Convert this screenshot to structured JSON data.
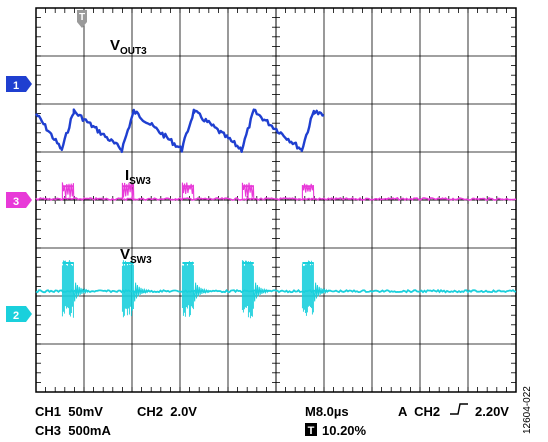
{
  "chart_data": {
    "type": "line",
    "title": "",
    "xlabel": "",
    "ylabel": "",
    "grid": true,
    "x_divisions": 10,
    "y_divisions": 8,
    "x_range_us": [
      0,
      80
    ],
    "series": [
      {
        "name": "V",
        "name_sub": "OUT3",
        "channel": "1",
        "color": "#1f3fd0",
        "points_us_div": [
          [
            0,
            5.8
          ],
          [
            4.3,
            5.05
          ],
          [
            6.3,
            5.85
          ],
          [
            14.3,
            5.05
          ],
          [
            16.3,
            5.85
          ],
          [
            24.3,
            5.05
          ],
          [
            26.3,
            5.85
          ],
          [
            34.3,
            5.05
          ],
          [
            36.3,
            5.85
          ],
          [
            44.3,
            5.05
          ],
          [
            46.3,
            5.85
          ],
          [
            48,
            5.75
          ]
        ]
      },
      {
        "name": "I",
        "name_sub": "SW3",
        "channel": "3",
        "color": "#e83ad8",
        "baseline_div": 4.02,
        "pulse_height_div": 0.35,
        "pulse_starts_us": [
          4.4,
          14.4,
          24.4,
          34.4,
          44.4
        ],
        "pulse_width_us": 1.9
      },
      {
        "name": "V",
        "name_sub": "SW3",
        "channel": "2",
        "color": "#1ad0dc",
        "baseline_div": 2.1,
        "pulse_height_div": 0.65,
        "burst_starts_us": [
          4.4,
          14.4,
          24.4,
          34.4,
          44.4
        ],
        "burst_width_us": 1.9
      }
    ]
  },
  "markers": {
    "ch1": "1",
    "ch3": "3",
    "ch2": "2",
    "trigger_top": "T"
  },
  "footer": {
    "ch1": "CH1  50mV",
    "ch2": "CH2  2.0V",
    "ch3": "CH3  500mA",
    "timebase": "M8.0µs",
    "trigger_prefix": "A  CH2",
    "trigger_level": "2.20V",
    "trigger_pos_icon": "T",
    "trigger_pos": "10.20%"
  },
  "figure_id": "12604-022",
  "colors": {
    "ch1": "#1f3fd0",
    "ch2": "#1ad0dc",
    "ch3": "#e83ad8",
    "trigger_marker": "#9a9a9a"
  }
}
